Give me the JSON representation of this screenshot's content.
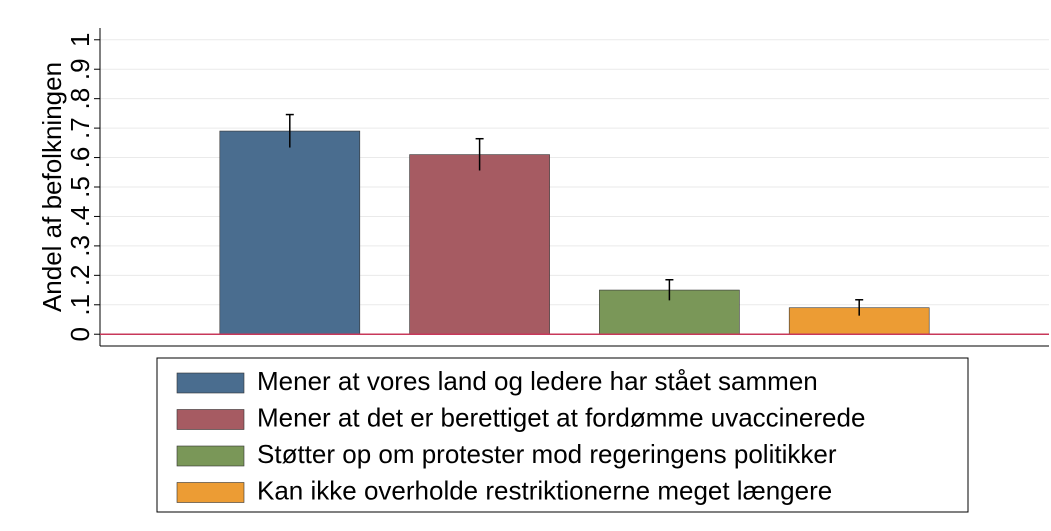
{
  "chart_data": {
    "type": "bar",
    "y_label": "Andel af befolkningen",
    "ylim": [
      -0.04,
      1.04
    ],
    "yticks": [
      0,
      {
        "value": 0.1,
        "label": ".1"
      },
      {
        "value": 0.2,
        "label": ".2"
      },
      {
        "value": 0.3,
        "label": ".3"
      },
      {
        "value": 0.4,
        "label": ".4"
      },
      {
        "value": 0.5,
        "label": ".5"
      },
      {
        "value": 0.6,
        "label": ".6"
      },
      {
        "value": 0.7,
        "label": ".7"
      },
      {
        "value": 0.8,
        "label": ".8"
      },
      {
        "value": 0.9,
        "label": ".9"
      },
      1
    ],
    "grid": true,
    "series": [
      {
        "name": "Mener at vores land og ledere har stået sammen",
        "color": "#4a6d8f",
        "values": [
          0.69
        ],
        "errors": [
          0.056
        ]
      },
      {
        "name": "Mener at det er berettiget at fordømme uvaccinerede",
        "color": "#a65b62",
        "values": [
          0.61
        ],
        "errors": [
          0.054
        ]
      },
      {
        "name": "Støtter op om protester mod regeringens politikker",
        "color": "#7a9758",
        "values": [
          0.15
        ],
        "errors": [
          0.035
        ]
      },
      {
        "name": "Kan ikke overholde restriktionerne meget længere",
        "color": "#ec9c34",
        "values": [
          0.09
        ],
        "errors": [
          0.027
        ]
      }
    ]
  }
}
